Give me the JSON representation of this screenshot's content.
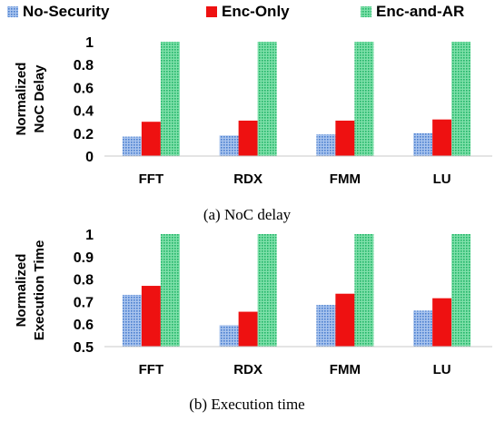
{
  "legend": {
    "items": [
      {
        "label": "No-Security",
        "color": "#5b8fd6",
        "pattern": "dots"
      },
      {
        "label": "Enc-Only",
        "color": "#ee1111",
        "pattern": "solid"
      },
      {
        "label": "Enc-and-AR",
        "color": "#3fc47e",
        "pattern": "dots"
      }
    ]
  },
  "chart_data": [
    {
      "type": "bar",
      "categories": [
        "FFT",
        "RDX",
        "FMM",
        "LU"
      ],
      "series": [
        {
          "name": "No-Security",
          "values": [
            0.17,
            0.18,
            0.19,
            0.2
          ]
        },
        {
          "name": "Enc-Only",
          "values": [
            0.3,
            0.31,
            0.31,
            0.32
          ]
        },
        {
          "name": "Enc-and-AR",
          "values": [
            1,
            1,
            1,
            1
          ]
        }
      ],
      "ylabel": [
        "Normalized",
        "NoC Delay"
      ],
      "ylim": [
        0,
        1
      ],
      "yticks": [
        "0",
        "0.2",
        "0.4",
        "0.6",
        "0.8",
        "1"
      ],
      "caption": "(a) NoC delay",
      "grid": false
    },
    {
      "type": "bar",
      "categories": [
        "FFT",
        "RDX",
        "FMM",
        "LU"
      ],
      "series": [
        {
          "name": "No-Security",
          "values": [
            0.73,
            0.595,
            0.685,
            0.66
          ]
        },
        {
          "name": "Enc-Only",
          "values": [
            0.77,
            0.655,
            0.735,
            0.715
          ]
        },
        {
          "name": "Enc-and-AR",
          "values": [
            1,
            1,
            1,
            1
          ]
        }
      ],
      "ylabel": [
        "Normalized",
        "Execution Time"
      ],
      "ylim": [
        0.5,
        1
      ],
      "yticks": [
        "0.5",
        "0.6",
        "0.7",
        "0.8",
        "0.9",
        "1"
      ],
      "caption": "(b) Execution time",
      "grid": false
    }
  ]
}
